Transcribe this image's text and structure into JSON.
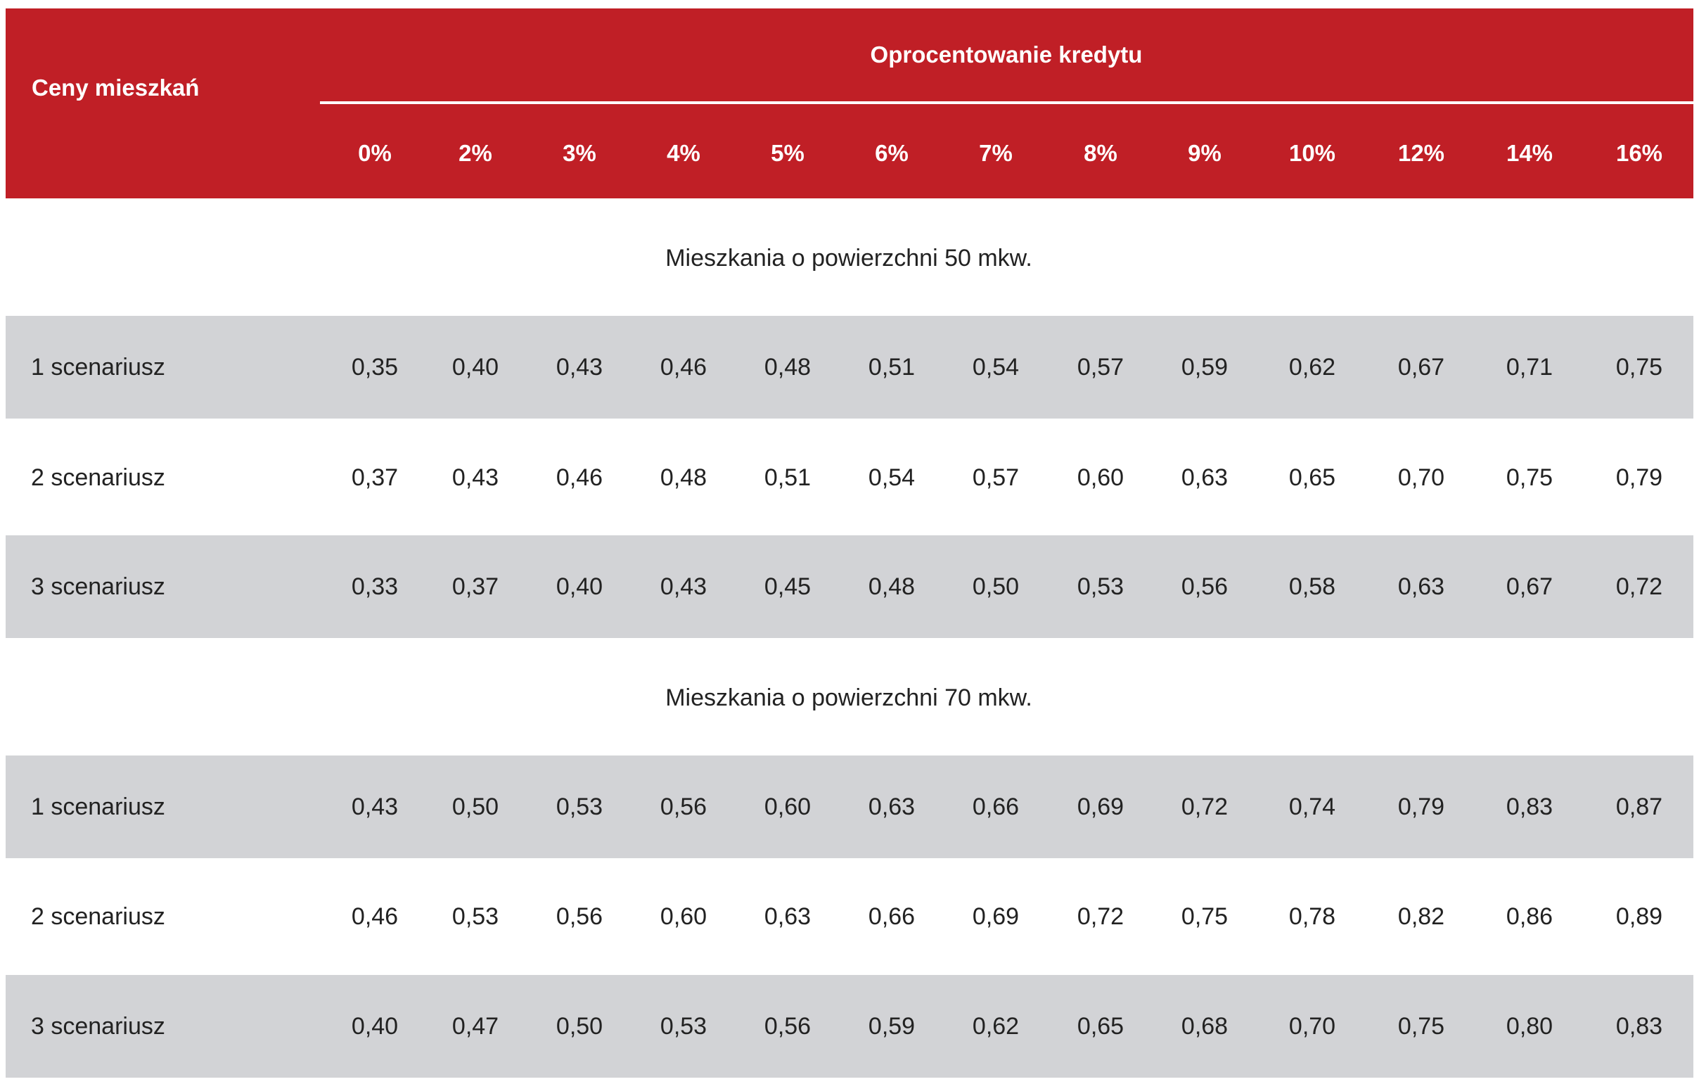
{
  "colors": {
    "header_bg": "#c01f26",
    "header_text": "#ffffff",
    "shaded_row": "#d2d3d6",
    "text": "#222222"
  },
  "chart_data": {
    "type": "table",
    "row_header_label": "Ceny mieszkań",
    "column_group_label": "Oprocentowanie kredytu",
    "columns": [
      "0%",
      "2%",
      "3%",
      "4%",
      "5%",
      "6%",
      "7%",
      "8%",
      "9%",
      "10%",
      "12%",
      "14%",
      "16%"
    ],
    "sections": [
      {
        "title": "Mieszkania o powierzchni 50 mkw.",
        "rows": [
          {
            "label": "1 scenariusz",
            "values": [
              "0,35",
              "0,40",
              "0,43",
              "0,46",
              "0,48",
              "0,51",
              "0,54",
              "0,57",
              "0,59",
              "0,62",
              "0,67",
              "0,71",
              "0,75"
            ]
          },
          {
            "label": "2 scenariusz",
            "values": [
              "0,37",
              "0,43",
              "0,46",
              "0,48",
              "0,51",
              "0,54",
              "0,57",
              "0,60",
              "0,63",
              "0,65",
              "0,70",
              "0,75",
              "0,79"
            ]
          },
          {
            "label": "3 scenariusz",
            "values": [
              "0,33",
              "0,37",
              "0,40",
              "0,43",
              "0,45",
              "0,48",
              "0,50",
              "0,53",
              "0,56",
              "0,58",
              "0,63",
              "0,67",
              "0,72"
            ]
          }
        ]
      },
      {
        "title": "Mieszkania o powierzchni 70 mkw.",
        "rows": [
          {
            "label": "1 scenariusz",
            "values": [
              "0,43",
              "0,50",
              "0,53",
              "0,56",
              "0,60",
              "0,63",
              "0,66",
              "0,69",
              "0,72",
              "0,74",
              "0,79",
              "0,83",
              "0,87"
            ]
          },
          {
            "label": "2 scenariusz",
            "values": [
              "0,46",
              "0,53",
              "0,56",
              "0,60",
              "0,63",
              "0,66",
              "0,69",
              "0,72",
              "0,75",
              "0,78",
              "0,82",
              "0,86",
              "0,89"
            ]
          },
          {
            "label": "3 scenariusz",
            "values": [
              "0,40",
              "0,47",
              "0,50",
              "0,53",
              "0,56",
              "0,59",
              "0,62",
              "0,65",
              "0,68",
              "0,70",
              "0,75",
              "0,80",
              "0,83"
            ]
          }
        ]
      }
    ]
  }
}
